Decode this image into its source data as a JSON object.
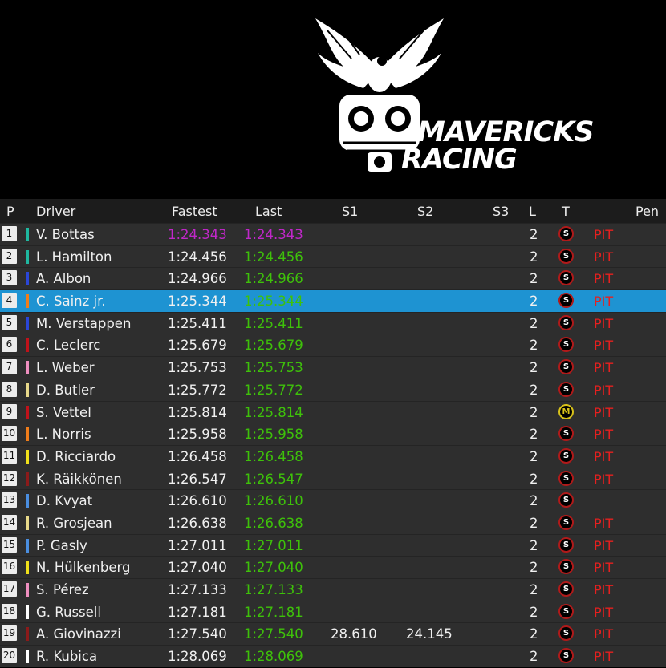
{
  "brand": {
    "line1": "MAVERICKS",
    "line2": "RACING"
  },
  "headers": {
    "p": "P",
    "driver": "Driver",
    "fastest": "Fastest",
    "last": "Last",
    "s1": "S1",
    "s2": "S2",
    "s3": "S3",
    "l": "L",
    "t": "T",
    "pen": "Pen"
  },
  "rows": [
    {
      "pos": "1",
      "driver": "V. Bottas",
      "color": "#1fb8a0",
      "fastest": "1:24.343",
      "last": "1:24.343",
      "s1": "",
      "s2": "",
      "lap": "2",
      "tyre": "S",
      "tyre_type": "soft",
      "pit": "PIT",
      "fastest_best": true,
      "last_best": true
    },
    {
      "pos": "2",
      "driver": "L. Hamilton",
      "color": "#1fb8a0",
      "fastest": "1:24.456",
      "last": "1:24.456",
      "s1": "",
      "s2": "",
      "lap": "2",
      "tyre": "S",
      "tyre_type": "soft",
      "pit": "PIT"
    },
    {
      "pos": "3",
      "driver": "A. Albon",
      "color": "#2a46d8",
      "fastest": "1:24.966",
      "last": "1:24.966",
      "s1": "",
      "s2": "",
      "lap": "2",
      "tyre": "S",
      "tyre_type": "soft",
      "pit": "PIT"
    },
    {
      "pos": "4",
      "driver": "C. Sainz jr.",
      "color": "#f07d1a",
      "fastest": "1:25.344",
      "last": "1:25.344",
      "s1": "",
      "s2": "",
      "lap": "2",
      "tyre": "S",
      "tyre_type": "soft",
      "pit": "PIT",
      "selected": true
    },
    {
      "pos": "5",
      "driver": "M. Verstappen",
      "color": "#2a46d8",
      "fastest": "1:25.411",
      "last": "1:25.411",
      "s1": "",
      "s2": "",
      "lap": "2",
      "tyre": "S",
      "tyre_type": "soft",
      "pit": "PIT"
    },
    {
      "pos": "6",
      "driver": "C. Leclerc",
      "color": "#c0121a",
      "fastest": "1:25.679",
      "last": "1:25.679",
      "s1": "",
      "s2": "",
      "lap": "2",
      "tyre": "S",
      "tyre_type": "soft",
      "pit": "PIT"
    },
    {
      "pos": "7",
      "driver": "L. Weber",
      "color": "#ef8fc0",
      "fastest": "1:25.753",
      "last": "1:25.753",
      "s1": "",
      "s2": "",
      "lap": "2",
      "tyre": "S",
      "tyre_type": "soft",
      "pit": "PIT"
    },
    {
      "pos": "8",
      "driver": "D. Butler",
      "color": "#e8d98a",
      "fastest": "1:25.772",
      "last": "1:25.772",
      "s1": "",
      "s2": "",
      "lap": "2",
      "tyre": "S",
      "tyre_type": "soft",
      "pit": "PIT"
    },
    {
      "pos": "9",
      "driver": "S. Vettel",
      "color": "#c0121a",
      "fastest": "1:25.814",
      "last": "1:25.814",
      "s1": "",
      "s2": "",
      "lap": "2",
      "tyre": "M",
      "tyre_type": "medium",
      "pit": "PIT"
    },
    {
      "pos": "10",
      "driver": "L. Norris",
      "color": "#f07d1a",
      "fastest": "1:25.958",
      "last": "1:25.958",
      "s1": "",
      "s2": "",
      "lap": "2",
      "tyre": "S",
      "tyre_type": "soft",
      "pit": "PIT"
    },
    {
      "pos": "11",
      "driver": "D. Ricciardo",
      "color": "#f0e01a",
      "fastest": "1:26.458",
      "last": "1:26.458",
      "s1": "",
      "s2": "",
      "lap": "2",
      "tyre": "S",
      "tyre_type": "soft",
      "pit": "PIT"
    },
    {
      "pos": "12",
      "driver": "K. Räikkönen",
      "color": "#8c1a1a",
      "fastest": "1:26.547",
      "last": "1:26.547",
      "s1": "",
      "s2": "",
      "lap": "2",
      "tyre": "S",
      "tyre_type": "soft",
      "pit": "PIT"
    },
    {
      "pos": "13",
      "driver": "D. Kvyat",
      "color": "#4a8ee0",
      "fastest": "1:26.610",
      "last": "1:26.610",
      "s1": "",
      "s2": "",
      "lap": "2",
      "tyre": "S",
      "tyre_type": "soft",
      "pit": ""
    },
    {
      "pos": "14",
      "driver": "R. Grosjean",
      "color": "#e8d98a",
      "fastest": "1:26.638",
      "last": "1:26.638",
      "s1": "",
      "s2": "",
      "lap": "2",
      "tyre": "S",
      "tyre_type": "soft",
      "pit": "PIT"
    },
    {
      "pos": "15",
      "driver": "P. Gasly",
      "color": "#4a8ee0",
      "fastest": "1:27.011",
      "last": "1:27.011",
      "s1": "",
      "s2": "",
      "lap": "2",
      "tyre": "S",
      "tyre_type": "soft",
      "pit": "PIT"
    },
    {
      "pos": "16",
      "driver": "N. Hülkenberg",
      "color": "#f0e01a",
      "fastest": "1:27.040",
      "last": "1:27.040",
      "s1": "",
      "s2": "",
      "lap": "2",
      "tyre": "S",
      "tyre_type": "soft",
      "pit": "PIT"
    },
    {
      "pos": "17",
      "driver": "S. Pérez",
      "color": "#ef8fc0",
      "fastest": "1:27.133",
      "last": "1:27.133",
      "s1": "",
      "s2": "",
      "lap": "2",
      "tyre": "S",
      "tyre_type": "soft",
      "pit": "PIT"
    },
    {
      "pos": "18",
      "driver": "G. Russell",
      "color": "#ffffff",
      "fastest": "1:27.181",
      "last": "1:27.181",
      "s1": "",
      "s2": "",
      "lap": "2",
      "tyre": "S",
      "tyre_type": "soft",
      "pit": "PIT"
    },
    {
      "pos": "19",
      "driver": "A. Giovinazzi",
      "color": "#8c1a1a",
      "fastest": "1:27.540",
      "last": "1:27.540",
      "s1": "28.610",
      "s2": "24.145",
      "lap": "2",
      "tyre": "S",
      "tyre_type": "soft",
      "pit": "PIT"
    },
    {
      "pos": "20",
      "driver": "R. Kubica",
      "color": "#ffffff",
      "fastest": "1:28.069",
      "last": "1:28.069",
      "s1": "",
      "s2": "",
      "lap": "2",
      "tyre": "S",
      "tyre_type": "soft",
      "pit": "PIT"
    }
  ]
}
